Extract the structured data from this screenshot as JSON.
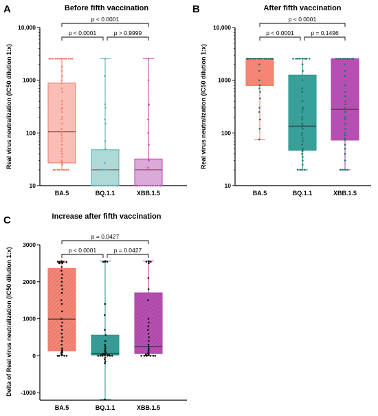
{
  "chart_data": [
    {
      "panel": "A",
      "type": "box",
      "title": "Before fifth vaccination",
      "ylabel": "Real virus neutralization (IC50 dilution 1:x)",
      "yscale": "log",
      "ylim": [
        10,
        10000
      ],
      "yticks": [
        10,
        100,
        1000,
        10000
      ],
      "yticklabels": [
        "10",
        "100",
        "1000",
        "10,000"
      ],
      "categories": [
        "BA.5",
        "BQ.1.1",
        "XBB.1.5"
      ],
      "colors": [
        "#f4806e",
        "#5fb3b0",
        "#b955b4"
      ],
      "boxes": [
        {
          "name": "BA.5",
          "min": 20,
          "q1": 27,
          "median": 105,
          "q3": 880,
          "max": 2560
        },
        {
          "name": "BQ.1.1",
          "min": 10,
          "q1": 10,
          "median": 20,
          "q3": 48,
          "max": 2560
        },
        {
          "name": "XBB.1.5",
          "min": 10,
          "q1": 10,
          "median": 20,
          "q3": 32,
          "max": 2560
        }
      ],
      "points": [
        [
          2560,
          2560,
          2560,
          2560,
          2560,
          2560,
          2560,
          2560,
          2560,
          2560,
          2560,
          2560,
          1800,
          1500,
          1200,
          1000,
          880,
          700,
          600,
          400,
          350,
          300,
          280,
          250,
          200,
          180,
          150,
          120,
          105,
          100,
          90,
          80,
          70,
          60,
          50,
          45,
          40,
          35,
          30,
          28,
          27,
          25,
          20,
          20,
          20,
          20,
          20,
          20,
          20,
          20
        ],
        [
          2560,
          1200,
          350,
          300,
          180,
          150,
          70,
          50,
          27,
          20,
          20,
          20,
          20,
          10,
          10,
          10,
          10,
          10,
          10,
          10,
          10,
          10,
          10,
          10,
          10,
          10,
          10,
          10,
          10,
          10
        ],
        [
          2560,
          1000,
          350,
          340,
          180,
          100,
          60,
          32,
          30,
          22,
          20,
          20,
          10,
          10,
          10,
          10,
          10,
          10,
          10,
          10,
          10,
          10,
          10,
          10,
          10,
          10,
          10,
          10,
          10,
          10
        ]
      ],
      "comparisons": [
        {
          "from": 0,
          "to": 2,
          "label": "p < 0.0001",
          "level": 2
        },
        {
          "from": 0,
          "to": 1,
          "label": "p < 0.0001",
          "level": 1
        },
        {
          "from": 1,
          "to": 2,
          "label": "p > 0.9999",
          "level": 1
        }
      ]
    },
    {
      "panel": "B",
      "type": "box",
      "title": "After fifth vaccination",
      "ylabel": "Real virus neutralization (IC50 dilution 1:x)",
      "yscale": "log",
      "ylim": [
        10,
        10000
      ],
      "yticks": [
        10,
        100,
        1000,
        10000
      ],
      "yticklabels": [
        "10",
        "100",
        "1000",
        "10,000"
      ],
      "categories": [
        "BA.5",
        "BQ.1.1",
        "XBB.1.5"
      ],
      "colors": [
        "#f4806e",
        "#2e9a94",
        "#b346ae"
      ],
      "boxes": [
        {
          "name": "BA.5",
          "min": 75,
          "q1": 790,
          "median": 2560,
          "q3": 2560,
          "max": 2560
        },
        {
          "name": "BQ.1.1",
          "min": 20,
          "q1": 47,
          "median": 135,
          "q3": 1250,
          "max": 2560
        },
        {
          "name": "XBB.1.5",
          "min": 20,
          "q1": 73,
          "median": 280,
          "q3": 2560,
          "max": 2560
        }
      ],
      "points": [
        [
          2560,
          2560,
          2560,
          2560,
          2560,
          2560,
          2560,
          2560,
          2560,
          2560,
          2560,
          2560,
          2560,
          2560,
          2560,
          2560,
          2560,
          2560,
          2560,
          2560,
          2000,
          1500,
          1000,
          800,
          700,
          600,
          450,
          300,
          250,
          180,
          120,
          75
        ],
        [
          2560,
          2560,
          2560,
          2560,
          2560,
          2560,
          2560,
          2560,
          2000,
          1500,
          1000,
          700,
          600,
          400,
          300,
          280,
          250,
          200,
          180,
          150,
          140,
          135,
          130,
          120,
          100,
          90,
          80,
          70,
          60,
          50,
          47,
          45,
          40,
          35,
          30,
          25,
          20,
          20,
          20,
          20
        ],
        [
          2560,
          2560,
          2560,
          2560,
          2560,
          2560,
          2560,
          2560,
          2560,
          2000,
          1500,
          1200,
          800,
          600,
          500,
          400,
          350,
          300,
          280,
          250,
          200,
          180,
          150,
          120,
          100,
          90,
          80,
          73,
          60,
          50,
          40,
          30,
          20,
          20,
          20,
          20
        ]
      ],
      "comparisons": [
        {
          "from": 0,
          "to": 2,
          "label": "p < 0.0001",
          "level": 2
        },
        {
          "from": 0,
          "to": 1,
          "label": "p < 0.0001",
          "level": 1
        },
        {
          "from": 1,
          "to": 2,
          "label": "p = 0.1496",
          "level": 1
        }
      ]
    },
    {
      "panel": "C",
      "type": "box",
      "title": "Increase after fifth vaccination",
      "ylabel": "Delta of Real virus neutralization (IC50 dilution 1:x)",
      "yscale": "linear",
      "ylim": [
        -1200,
        3000
      ],
      "yticks": [
        -1000,
        0,
        1000,
        2000,
        3000
      ],
      "yticklabels": [
        "-1000",
        "0",
        "1000",
        "2000",
        "3000"
      ],
      "categories": [
        "BA.5",
        "BQ.1.1",
        "XBB.1.5"
      ],
      "colors": [
        "#f4806e",
        "#2e9a94",
        "#b346ae"
      ],
      "boxes": [
        {
          "name": "BA.5",
          "min": 0,
          "q1": 130,
          "median": 990,
          "q3": 2360,
          "max": 2560
        },
        {
          "name": "BQ.1.1",
          "min": -1180,
          "q1": 20,
          "median": 55,
          "q3": 560,
          "max": 2560
        },
        {
          "name": "XBB.1.5",
          "min": 0,
          "q1": 60,
          "median": 250,
          "q3": 1700,
          "max": 2560
        }
      ],
      "points": [
        [
          2560,
          2540,
          2540,
          2540,
          2540,
          2530,
          2520,
          2520,
          2500,
          2500,
          2400,
          2300,
          2200,
          2100,
          2000,
          1900,
          1800,
          1700,
          1500,
          1400,
          1200,
          1000,
          900,
          800,
          700,
          600,
          500,
          400,
          300,
          200,
          150,
          130,
          100,
          80,
          50,
          30,
          10,
          0,
          0,
          0,
          0
        ],
        [
          2560,
          2540,
          2540,
          2540,
          1400,
          1100,
          700,
          560,
          400,
          300,
          250,
          200,
          150,
          120,
          100,
          80,
          60,
          55,
          50,
          40,
          35,
          30,
          25,
          20,
          20,
          10,
          0,
          0,
          0,
          0,
          0,
          0,
          -50,
          -100,
          -150,
          -200,
          -1180
        ],
        [
          2560,
          2540,
          2540,
          2540,
          2500,
          2100,
          1800,
          1500,
          1000,
          900,
          800,
          700,
          600,
          500,
          400,
          300,
          250,
          200,
          150,
          100,
          80,
          60,
          50,
          40,
          30,
          20,
          10,
          0,
          0,
          0,
          0,
          0,
          0
        ]
      ],
      "comparisons": [
        {
          "from": 0,
          "to": 2,
          "label": "p = 0.0427",
          "level": 2
        },
        {
          "from": 0,
          "to": 1,
          "label": "p < 0.0001",
          "level": 1
        },
        {
          "from": 1,
          "to": 2,
          "label": "p = 0.0427",
          "level": 1
        }
      ]
    }
  ]
}
